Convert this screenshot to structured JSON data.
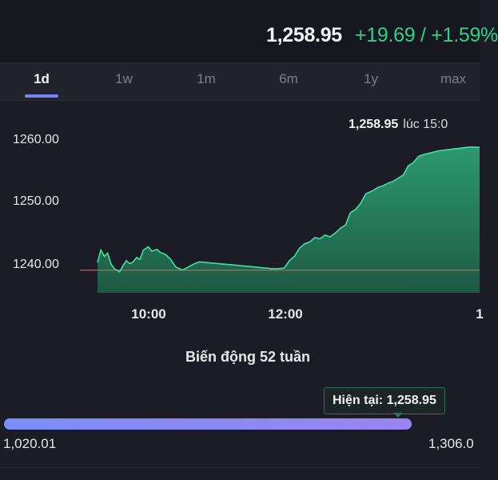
{
  "header": {
    "price": "1,258.95",
    "change": "+19.69 / +1.59%"
  },
  "tabs": [
    {
      "label": "1d",
      "active": true
    },
    {
      "label": "1w"
    },
    {
      "label": "1m"
    },
    {
      "label": "6m"
    },
    {
      "label": "1y"
    },
    {
      "label": "max"
    }
  ],
  "chart_data": {
    "type": "area",
    "current_label": {
      "value": "1,258.95",
      "time": "lúc 15:0"
    },
    "y_ticks": [
      "1260.00",
      "1250.00",
      "1240.00"
    ],
    "x_ticks": [
      "10:00",
      "12:00",
      "1"
    ],
    "reference_value": 1239.26,
    "ylim": [
      1236.5,
      1262.5
    ],
    "series": [
      {
        "x": [
          0,
          0.02,
          0.04,
          0.06,
          0.08,
          0.1,
          0.13,
          0.15,
          0.17,
          0.19,
          0.21,
          0.23,
          0.25,
          0.27,
          0.3,
          0.32,
          0.35,
          0.37,
          0.4,
          0.43,
          0.46,
          0.5,
          0.53,
          0.57,
          0.6,
          0.64,
          0.68,
          0.72,
          0.76,
          0.8,
          0.84,
          0.88,
          0.92,
          0.95,
          0.98,
          1.0,
          1.02,
          1.06,
          1.1,
          1.13,
          1.16,
          1.19,
          1.22,
          1.25,
          1.28,
          1.31,
          1.34,
          1.37,
          1.4,
          1.43,
          1.46,
          1.49,
          1.52,
          1.55,
          1.58,
          1.62,
          1.65,
          1.68,
          1.71,
          1.74,
          1.77,
          1.8,
          1.83,
          1.86,
          1.89,
          1.92,
          1.95,
          1.98,
          2.01,
          2.04,
          2.07,
          2.1,
          2.13,
          2.16,
          2.19,
          2.22,
          2.25
        ],
        "values": [
          1240.5,
          1242.5,
          1241.5,
          1242.0,
          1240.2,
          1239.5,
          1239.0,
          1240.0,
          1240.8,
          1240.3,
          1240.6,
          1241.3,
          1241.0,
          1242.5,
          1243.0,
          1242.3,
          1242.6,
          1242.1,
          1241.8,
          1241.0,
          1239.8,
          1239.3,
          1239.7,
          1240.3,
          1240.6,
          1240.5,
          1240.4,
          1240.3,
          1240.2,
          1240.1,
          1240.0,
          1239.9,
          1239.8,
          1239.7,
          1239.6,
          1239.6,
          1239.5,
          1239.5,
          1239.6,
          1240.8,
          1241.5,
          1242.8,
          1243.5,
          1243.8,
          1244.5,
          1244.3,
          1244.9,
          1244.6,
          1245.2,
          1246.0,
          1246.5,
          1248.5,
          1249.0,
          1250.0,
          1251.5,
          1252.0,
          1252.5,
          1252.8,
          1253.2,
          1253.5,
          1254.0,
          1254.5,
          1256.0,
          1256.5,
          1257.5,
          1257.8,
          1258.0,
          1258.2,
          1258.4,
          1258.5,
          1258.6,
          1258.7,
          1258.8,
          1258.9,
          1259.0,
          1259.0,
          1258.95
        ]
      }
    ]
  },
  "range": {
    "title": "Biến động 52 tuần",
    "current_label": "Hiện tại: 1,258.95",
    "low": "1,020.01",
    "high": "1,306.0",
    "current_fraction": 0.835
  }
}
